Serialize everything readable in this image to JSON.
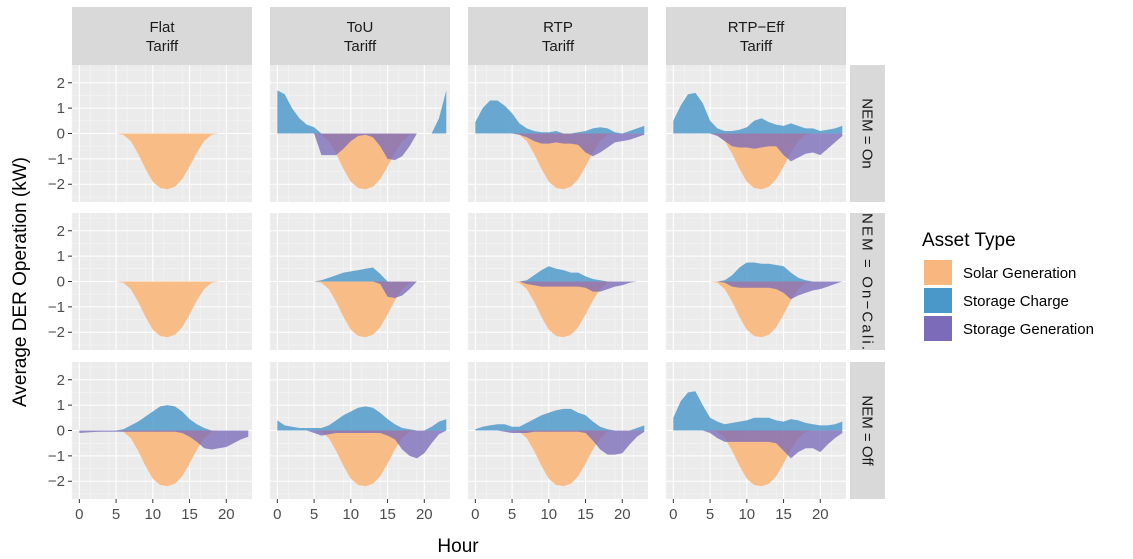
{
  "chart_data": {
    "type": "area",
    "layout": "facet-grid",
    "xlabel": "Hour",
    "ylabel": "Average DER Operation (kW)",
    "xlim": [
      -1,
      23.5
    ],
    "ylim": [
      -2.7,
      2.7
    ],
    "x_ticks": [
      0,
      5,
      10,
      15,
      20
    ],
    "y_ticks": [
      -2,
      -1,
      0,
      1,
      2
    ],
    "grid": true,
    "legend_position": "right",
    "columns": [
      "Flat\nTariff",
      "ToU\nTariff",
      "RTP\nTariff",
      "RTP−Eff\nTariff"
    ],
    "rows": [
      "NEM = On",
      "NEM = On−Cali.",
      "NEM = Off"
    ],
    "legend": {
      "title": "Asset Type",
      "items": [
        {
          "label": "Solar Generation",
          "color": "#F8B77E"
        },
        {
          "label": "Storage Charge",
          "color": "#4A97C9"
        },
        {
          "label": "Storage Generation",
          "color": "#7B6BB9"
        }
      ]
    },
    "hours": [
      0,
      1,
      2,
      3,
      4,
      5,
      6,
      7,
      8,
      9,
      10,
      11,
      12,
      13,
      14,
      15,
      16,
      17,
      18,
      19,
      20,
      21,
      22,
      23
    ],
    "solar": [
      0,
      0,
      0,
      0,
      0,
      0,
      -0.05,
      -0.3,
      -0.8,
      -1.4,
      -1.9,
      -2.15,
      -2.2,
      -2.1,
      -1.8,
      -1.3,
      -0.75,
      -0.3,
      -0.05,
      0,
      0,
      0,
      0,
      0
    ],
    "panels": [
      [
        {
          "charge": [
            0,
            0,
            0,
            0,
            0,
            0,
            0,
            0,
            0,
            0,
            0,
            0,
            0,
            0,
            0,
            0,
            0,
            0,
            0,
            0,
            0,
            0,
            0,
            0
          ],
          "storage_gen": [
            0,
            0,
            0,
            0,
            0,
            0,
            0,
            0,
            0,
            0,
            0,
            0,
            0,
            0,
            0,
            0,
            0,
            0,
            0,
            0,
            0,
            0,
            0,
            0
          ]
        },
        {
          "charge": [
            1.7,
            1.55,
            1.0,
            0.6,
            0.35,
            0.25,
            0,
            0,
            0,
            0,
            0,
            0,
            0,
            0,
            0,
            0,
            0,
            0,
            0,
            0,
            0,
            0,
            0.6,
            1.7
          ],
          "storage_gen": [
            0,
            0,
            0,
            0,
            0,
            0,
            -0.85,
            -0.85,
            -0.85,
            -0.6,
            -0.3,
            -0.1,
            -0.05,
            -0.15,
            -0.5,
            -1.0,
            -1.05,
            -0.9,
            -0.5,
            0,
            0,
            0,
            0,
            0
          ]
        },
        {
          "charge": [
            0.45,
            1.0,
            1.3,
            1.3,
            1.1,
            0.8,
            0.4,
            0.2,
            0.1,
            0.05,
            0.05,
            0.1,
            0,
            0,
            0.05,
            0.1,
            0.2,
            0.25,
            0.2,
            0.05,
            0,
            0.1,
            0.2,
            0.3
          ],
          "storage_gen": [
            0,
            0,
            0,
            0,
            0,
            0,
            -0.05,
            -0.15,
            -0.3,
            -0.4,
            -0.4,
            -0.35,
            -0.4,
            -0.4,
            -0.45,
            -0.75,
            -0.9,
            -0.75,
            -0.55,
            -0.35,
            -0.3,
            -0.25,
            -0.15,
            -0.05
          ]
        },
        {
          "charge": [
            0.5,
            1.1,
            1.55,
            1.6,
            1.2,
            0.5,
            0.2,
            0.1,
            0.1,
            0.15,
            0.25,
            0.5,
            0.6,
            0.45,
            0.35,
            0.3,
            0.4,
            0.3,
            0.2,
            0.2,
            0.1,
            0.15,
            0.2,
            0.3
          ],
          "storage_gen": [
            0,
            0,
            0,
            0,
            0,
            0,
            -0.1,
            -0.3,
            -0.5,
            -0.55,
            -0.55,
            -0.6,
            -0.55,
            -0.5,
            -0.5,
            -0.85,
            -1.1,
            -0.95,
            -0.8,
            -0.75,
            -0.85,
            -0.6,
            -0.35,
            -0.1
          ]
        }
      ],
      [
        {
          "charge": [
            0,
            0,
            0,
            0,
            0,
            0,
            0,
            0,
            0,
            0,
            0,
            0,
            0,
            0,
            0,
            0,
            0,
            0,
            0,
            0,
            0,
            0,
            0,
            0
          ],
          "storage_gen": [
            0,
            0,
            0,
            0,
            0,
            0,
            0,
            0,
            0,
            0,
            0,
            0,
            0,
            0,
            0,
            0,
            0,
            0,
            0,
            0,
            0,
            0,
            0,
            0
          ]
        },
        {
          "charge": [
            0,
            0,
            0,
            0,
            0,
            0,
            0.05,
            0.15,
            0.25,
            0.35,
            0.4,
            0.45,
            0.5,
            0.55,
            0.3,
            0,
            0,
            0,
            0,
            0,
            0,
            0,
            0,
            0
          ],
          "storage_gen": [
            0,
            0,
            0,
            0,
            0,
            0,
            0,
            0,
            0,
            0,
            0,
            0,
            0,
            0,
            -0.1,
            -0.6,
            -0.65,
            -0.55,
            -0.3,
            0,
            0,
            0,
            0,
            0
          ]
        },
        {
          "charge": [
            0,
            0,
            0,
            0,
            0,
            0,
            0,
            0.05,
            0.25,
            0.45,
            0.6,
            0.5,
            0.45,
            0.35,
            0.35,
            0.2,
            0.1,
            0.05,
            0,
            0,
            0,
            0,
            0,
            0
          ],
          "storage_gen": [
            0,
            0,
            0,
            0,
            0,
            0,
            0,
            -0.1,
            -0.15,
            -0.2,
            -0.2,
            -0.2,
            -0.2,
            -0.2,
            -0.2,
            -0.25,
            -0.4,
            -0.4,
            -0.3,
            -0.2,
            -0.15,
            -0.05,
            0,
            0
          ]
        },
        {
          "charge": [
            0,
            0,
            0,
            0,
            0,
            0,
            0,
            0.05,
            0.25,
            0.55,
            0.75,
            0.75,
            0.7,
            0.7,
            0.65,
            0.6,
            0.35,
            0.15,
            0.05,
            0,
            0,
            0,
            0,
            0
          ],
          "storage_gen": [
            0,
            0,
            0,
            0,
            0,
            0,
            0,
            -0.05,
            -0.2,
            -0.25,
            -0.25,
            -0.25,
            -0.25,
            -0.25,
            -0.3,
            -0.45,
            -0.7,
            -0.55,
            -0.45,
            -0.35,
            -0.3,
            -0.2,
            -0.1,
            0
          ]
        }
      ],
      [
        {
          "charge": [
            0,
            0,
            0,
            0,
            0,
            0,
            0.05,
            0.2,
            0.35,
            0.55,
            0.75,
            0.95,
            1.0,
            0.95,
            0.75,
            0.45,
            0.25,
            0.1,
            0,
            0,
            0,
            0,
            0,
            0
          ],
          "storage_gen": [
            -0.1,
            -0.08,
            -0.06,
            -0.05,
            -0.05,
            -0.05,
            -0.05,
            -0.05,
            -0.05,
            -0.05,
            -0.05,
            -0.05,
            -0.05,
            -0.05,
            -0.1,
            -0.25,
            -0.45,
            -0.7,
            -0.75,
            -0.7,
            -0.65,
            -0.5,
            -0.35,
            -0.25
          ]
        },
        {
          "charge": [
            0.4,
            0.2,
            0.15,
            0.1,
            0.1,
            0.1,
            0.1,
            0.2,
            0.4,
            0.6,
            0.75,
            0.9,
            0.95,
            0.9,
            0.7,
            0.45,
            0.25,
            0.1,
            0.05,
            0,
            0,
            0.15,
            0.35,
            0.45
          ],
          "storage_gen": [
            0,
            0,
            0,
            0,
            0,
            -0.1,
            -0.2,
            -0.15,
            -0.1,
            -0.1,
            -0.1,
            -0.1,
            -0.1,
            -0.1,
            -0.1,
            -0.2,
            -0.35,
            -0.75,
            -1.0,
            -1.1,
            -0.9,
            -0.5,
            -0.15,
            0
          ]
        },
        {
          "charge": [
            0.05,
            0.15,
            0.2,
            0.25,
            0.25,
            0.15,
            0.15,
            0.3,
            0.45,
            0.6,
            0.7,
            0.8,
            0.85,
            0.85,
            0.7,
            0.6,
            0.35,
            0.15,
            0.05,
            0,
            0,
            0,
            0.1,
            0.2
          ],
          "storage_gen": [
            0,
            0,
            0,
            0,
            -0.05,
            -0.1,
            -0.1,
            -0.1,
            -0.05,
            -0.05,
            -0.05,
            -0.05,
            -0.05,
            -0.05,
            -0.05,
            -0.1,
            -0.4,
            -0.75,
            -0.95,
            -0.95,
            -0.9,
            -0.55,
            -0.25,
            -0.05
          ]
        },
        {
          "charge": [
            0.5,
            1.15,
            1.5,
            1.55,
            1.0,
            0.5,
            0.35,
            0.25,
            0.3,
            0.35,
            0.4,
            0.5,
            0.5,
            0.5,
            0.4,
            0.35,
            0.45,
            0.4,
            0.3,
            0.25,
            0.2,
            0.2,
            0.25,
            0.35
          ],
          "storage_gen": [
            0,
            0,
            0,
            0,
            0,
            -0.1,
            -0.3,
            -0.45,
            -0.45,
            -0.45,
            -0.45,
            -0.45,
            -0.45,
            -0.45,
            -0.5,
            -0.8,
            -1.1,
            -0.85,
            -0.7,
            -0.7,
            -0.85,
            -0.55,
            -0.3,
            -0.1
          ]
        }
      ]
    ]
  }
}
